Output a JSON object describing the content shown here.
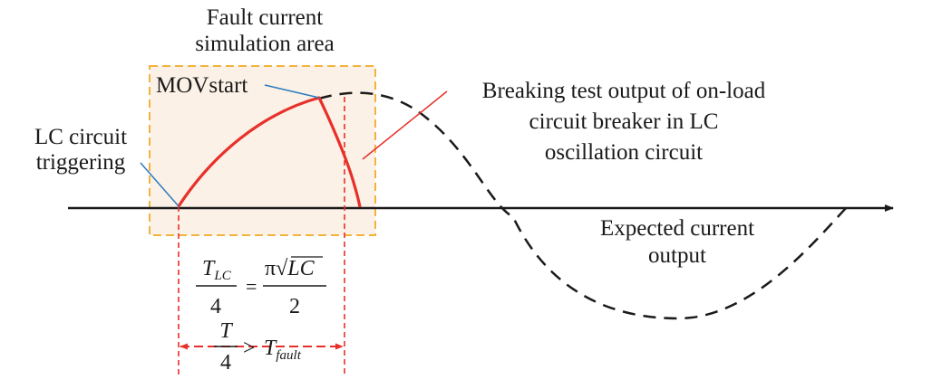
{
  "labels": {
    "fault_area_line1": "Fault current",
    "fault_area_line2": "simulation area",
    "mov_start": "MOVstart",
    "lc_trigger_line1": "LC circuit",
    "lc_trigger_line2": "triggering",
    "breaking_line1": "Breaking test output of on-load",
    "breaking_line2": "circuit breaker in LC",
    "breaking_line3": "oscillation circuit",
    "expected_line1": "Expected current",
    "expected_line2": "output"
  },
  "formula1": {
    "lhs_num_main": "T",
    "lhs_num_sub": "LC",
    "lhs_den": "4",
    "equals": "=",
    "rhs_num_pi": "π",
    "rhs_num_sqrt": "√",
    "rhs_num_radicand": "LC",
    "rhs_den": "2"
  },
  "formula2": {
    "num": "T",
    "den": "4",
    "gt": ">",
    "rhs_main": "T",
    "rhs_sub": "fault"
  },
  "colors": {
    "axis": "#1a1a1a",
    "fault_curve": "#e8302a",
    "leader_red": "#e8302a",
    "leader_blue": "#2b7bc0",
    "area_fill": "#fbf1e6",
    "area_border": "#f2b33d",
    "dashed_marker": "#e8302a",
    "expected_curve": "#1a1a1a"
  }
}
